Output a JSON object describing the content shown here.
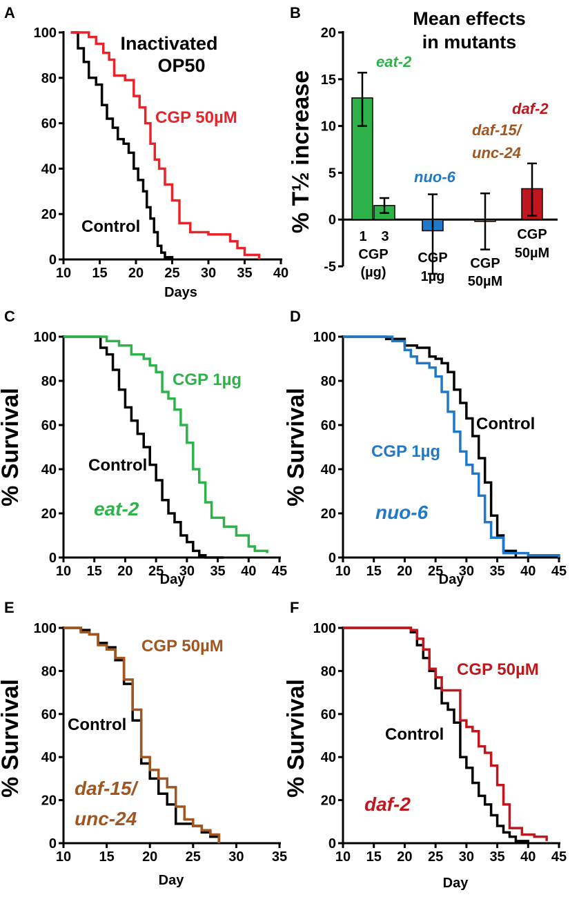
{
  "figure": {
    "background": "#ffffff"
  },
  "colors": {
    "black": "#000000",
    "red": "#e8232a",
    "green": "#2db34a",
    "blue": "#1f78c8",
    "brown": "#a0561e",
    "darkred": "#c0161d"
  },
  "chart_data": [
    {
      "panel": "A",
      "type": "line",
      "title": "Inactivated\nOP50",
      "xlabel": "Days",
      "ylabel": "",
      "xlim": [
        10,
        40
      ],
      "ylim": [
        0,
        100
      ],
      "xticks": [
        10,
        15,
        20,
        25,
        30,
        35,
        40
      ],
      "yticks": [
        0,
        20,
        40,
        60,
        80,
        100
      ],
      "series": [
        {
          "name": "Control",
          "color": "#000000",
          "x": [
            11,
            12,
            12.8,
            13.5,
            14.5,
            15.3,
            16,
            16.8,
            17.5,
            18.3,
            19,
            19.7,
            20.3,
            21,
            21.5,
            22,
            22.5,
            23,
            23.5,
            24,
            25
          ],
          "y": [
            100,
            93,
            87,
            80,
            77,
            68,
            62,
            58,
            53,
            51,
            47,
            40,
            35,
            30,
            23,
            18,
            12,
            6,
            3,
            1,
            0
          ]
        },
        {
          "name": "CGP 50µM",
          "color": "#e8232a",
          "x": [
            11,
            13.5,
            14.5,
            15.5,
            16.3,
            17,
            18.5,
            19.7,
            20.5,
            21.3,
            22,
            22.6,
            23.2,
            24,
            25,
            26,
            27.5,
            28,
            30,
            33,
            34,
            35,
            37
          ],
          "y": [
            100,
            98,
            95,
            91,
            88,
            81,
            79,
            72,
            67,
            60,
            51,
            44,
            40,
            33,
            26,
            16,
            12,
            12,
            11,
            8,
            5,
            2,
            0
          ]
        }
      ],
      "labels": {
        "control": "Control",
        "treatment": "CGP 50µM"
      }
    },
    {
      "panel": "B",
      "type": "bar",
      "title": "Mean effects\nin mutants",
      "ylabel": "% T½ increase",
      "ylim": [
        -5,
        20
      ],
      "yticks": [
        -5,
        0,
        5,
        10,
        15,
        20
      ],
      "bars": [
        {
          "category": "1",
          "strain": "eat-2",
          "value": 13.0,
          "err_low": 10.0,
          "err_high": 15.7,
          "color": "#2db34a"
        },
        {
          "category": "3",
          "strain": "eat-2",
          "value": 1.5,
          "err_low": 0.7,
          "err_high": 2.3,
          "color": "#2db34a"
        },
        {
          "category": "CGP 1µg",
          "strain": "nuo-6",
          "value": -1.2,
          "err_low": -5.8,
          "err_high": 2.7,
          "color": "#1f78c8"
        },
        {
          "category": "CGP 50µM",
          "strain": "daf-15/unc-24",
          "value": -0.2,
          "err_low": -3.2,
          "err_high": 2.8,
          "color": "#a0561e"
        },
        {
          "category": "CGP 50µM",
          "strain": "daf-2",
          "value": 3.3,
          "err_low": 0.4,
          "err_high": 6.0,
          "color": "#c0161d"
        }
      ],
      "strain_labels": {
        "eat2": "eat-2",
        "nuo6": "nuo-6",
        "daf15a": "daf-15/",
        "daf15b": "unc-24",
        "daf2": "daf-2"
      },
      "cat_labels": {
        "one": "1",
        "three": "3",
        "cgp": "CGP",
        "ug": "(µg)",
        "nuo_a": "CGP",
        "nuo_b": "1µg",
        "daf15_a": "CGP",
        "daf15_b": "50µM",
        "daf2_a": "CGP",
        "daf2_b": "50µM"
      }
    },
    {
      "panel": "C",
      "type": "line",
      "xlabel": "Day",
      "ylabel": "% Survival",
      "xlim": [
        10,
        45
      ],
      "ylim": [
        0,
        100
      ],
      "xticks": [
        10,
        15,
        20,
        25,
        30,
        35,
        40,
        45
      ],
      "yticks": [
        0,
        20,
        40,
        60,
        80,
        100
      ],
      "series": [
        {
          "name": "Control",
          "color": "#000000",
          "x": [
            10,
            16,
            17,
            18,
            19,
            20,
            21,
            22,
            23,
            24,
            25,
            26,
            27,
            28,
            29,
            30,
            31,
            32,
            33,
            36
          ],
          "y": [
            100,
            95,
            92,
            85,
            76,
            68,
            62,
            56,
            50,
            42,
            35,
            26,
            20,
            16,
            10,
            7,
            3,
            1,
            0,
            0
          ]
        },
        {
          "name": "CGP 1µg",
          "color": "#2db34a",
          "x": [
            10,
            17,
            19,
            21,
            23,
            24,
            25,
            26,
            27,
            28,
            29,
            30,
            31,
            32,
            33,
            34,
            36,
            38,
            40,
            41,
            43
          ],
          "y": [
            100,
            98,
            96,
            92,
            90,
            87,
            84,
            75,
            72,
            67,
            60,
            52,
            40,
            34,
            25,
            18,
            14,
            10,
            5,
            3,
            2
          ]
        }
      ],
      "labels": {
        "control": "Control",
        "treatment": "CGP 1µg",
        "strain": "eat-2"
      }
    },
    {
      "panel": "D",
      "type": "line",
      "xlabel": "Day",
      "ylabel": "% Survival",
      "xlim": [
        10,
        45
      ],
      "ylim": [
        0,
        100
      ],
      "xticks": [
        10,
        15,
        20,
        25,
        30,
        35,
        40,
        45
      ],
      "yticks": [
        0,
        20,
        40,
        60,
        80,
        100
      ],
      "series": [
        {
          "name": "Control",
          "color": "#000000",
          "x": [
            10,
            17,
            20,
            22,
            24,
            25,
            26,
            27,
            28,
            29,
            30,
            31,
            32,
            33,
            34,
            35,
            36,
            38
          ],
          "y": [
            100,
            99,
            96,
            95,
            91,
            90,
            88,
            84,
            76,
            70,
            63,
            55,
            45,
            34,
            19,
            10,
            3,
            0
          ]
        },
        {
          "name": "CGP 1µg",
          "color": "#1f78c8",
          "x": [
            10,
            18,
            20,
            21,
            22,
            24,
            25,
            26,
            27,
            28,
            29,
            30,
            31,
            32,
            33,
            34,
            36,
            40,
            45
          ],
          "y": [
            100,
            98,
            94,
            91,
            88,
            86,
            82,
            75,
            66,
            57,
            48,
            42,
            38,
            28,
            16,
            9,
            2,
            1,
            0
          ]
        }
      ],
      "labels": {
        "control": "Control",
        "treatment": "CGP 1µg",
        "strain": "nuo-6"
      }
    },
    {
      "panel": "E",
      "type": "line",
      "xlabel": "Day",
      "ylabel": "% Survival",
      "xlim": [
        10,
        35
      ],
      "ylim": [
        0,
        100
      ],
      "xticks": [
        10,
        15,
        20,
        25,
        30,
        35
      ],
      "yticks": [
        0,
        20,
        40,
        60,
        80,
        100
      ],
      "series": [
        {
          "name": "Control",
          "color": "#000000",
          "x": [
            10,
            12,
            13,
            14,
            15,
            16,
            17,
            18,
            19,
            20,
            21,
            22,
            23,
            25,
            26,
            27,
            28
          ],
          "y": [
            100,
            99,
            97,
            93,
            91,
            85,
            74,
            57,
            37,
            30,
            23,
            18,
            9,
            8,
            5,
            3,
            0
          ]
        },
        {
          "name": "CGP 50µM",
          "color": "#a0561e",
          "x": [
            10,
            12,
            13,
            14,
            15,
            16,
            17,
            18,
            19,
            20,
            21,
            22,
            23,
            24,
            25,
            26,
            27,
            28
          ],
          "y": [
            100,
            98,
            97,
            92,
            90,
            86,
            76,
            62,
            40,
            34,
            30,
            26,
            17,
            11,
            8,
            6,
            4,
            0
          ]
        }
      ],
      "labels": {
        "control": "Control",
        "treatment": "CGP 50µM",
        "strain_a": "daf-15/",
        "strain_b": "unc-24"
      }
    },
    {
      "panel": "F",
      "type": "line",
      "xlabel": "Day",
      "ylabel": "% Survival",
      "xlim": [
        10,
        45
      ],
      "ylim": [
        0,
        100
      ],
      "xticks": [
        10,
        15,
        20,
        25,
        30,
        35,
        40,
        45
      ],
      "yticks": [
        0,
        20,
        40,
        60,
        80,
        100
      ],
      "series": [
        {
          "name": "Control",
          "color": "#000000",
          "x": [
            10,
            21,
            22,
            23,
            24,
            25,
            26,
            27,
            28,
            29,
            30,
            31,
            32,
            33,
            34,
            35,
            36,
            37,
            38,
            40
          ],
          "y": [
            100,
            98,
            92,
            86,
            80,
            72,
            65,
            62,
            56,
            40,
            35,
            28,
            22,
            18,
            13,
            8,
            5,
            3,
            1,
            0
          ]
        },
        {
          "name": "CGP 50µM",
          "color": "#c0161d",
          "x": [
            10,
            21,
            22,
            23,
            24,
            25,
            26,
            27,
            29,
            30,
            31,
            32,
            33,
            34,
            35,
            36,
            37,
            39,
            41,
            43
          ],
          "y": [
            100,
            99,
            95,
            90,
            81,
            77,
            71,
            71,
            57,
            54,
            52,
            45,
            42,
            36,
            27,
            18,
            7,
            4,
            3,
            1
          ]
        }
      ],
      "labels": {
        "control": "Control",
        "treatment": "CGP 50µM",
        "strain": "daf-2"
      }
    }
  ]
}
